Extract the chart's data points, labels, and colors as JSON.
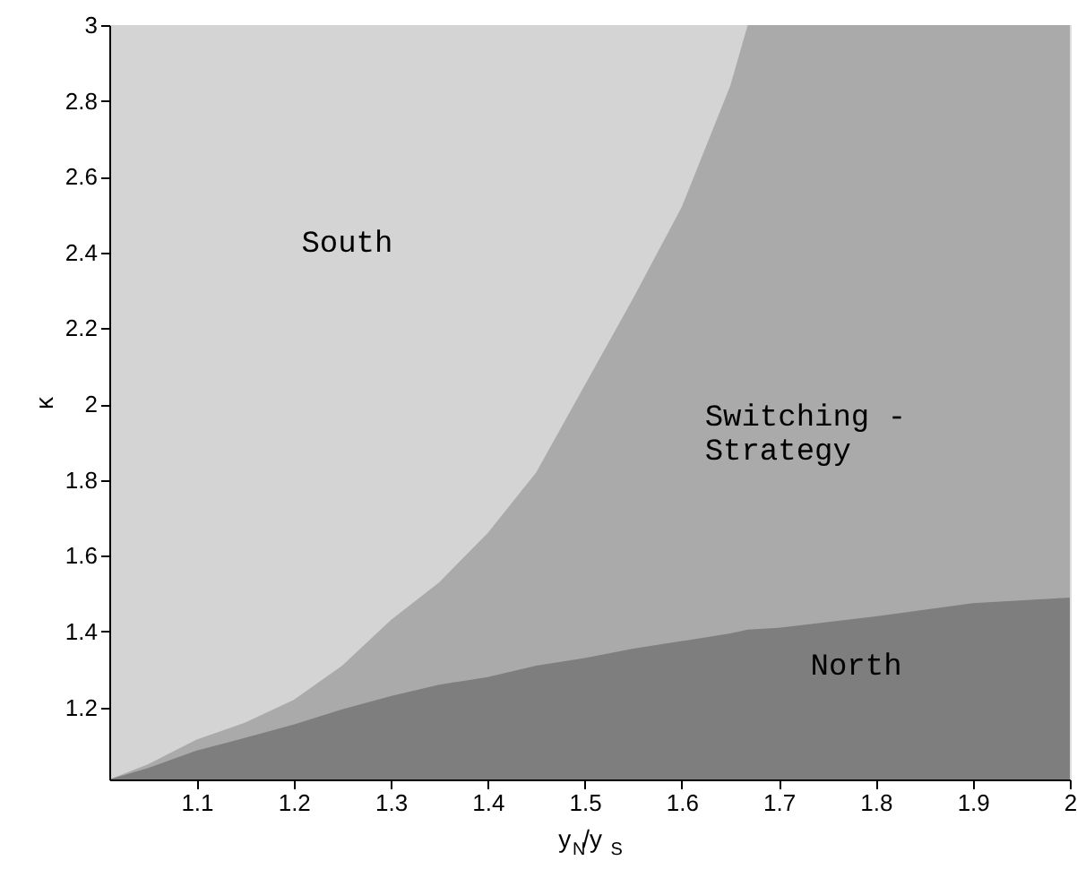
{
  "chart_data": {
    "type": "area",
    "xlabel": "y$_{N}$/y$_{S}$",
    "ylabel": "κ",
    "x": [
      1.01,
      1.05,
      1.1,
      1.15,
      1.2,
      1.25,
      1.3,
      1.35,
      1.4,
      1.45,
      1.5,
      1.55,
      1.6,
      1.65,
      1.668,
      1.7,
      1.8,
      1.9,
      2.0
    ],
    "series": [
      {
        "name": "South",
        "color": "#d4d4d4",
        "values": [
          3,
          3,
          3,
          3,
          3,
          3,
          3,
          3,
          3,
          3,
          3,
          3,
          3,
          3,
          3,
          null,
          null,
          null,
          null
        ]
      },
      {
        "name": "Switching -\nStrategy",
        "color": "#aaaaaa",
        "values": [
          1.01,
          1.05,
          1.115,
          1.16,
          1.22,
          1.31,
          1.43,
          1.53,
          1.66,
          1.82,
          2.05,
          2.28,
          2.52,
          2.84,
          3,
          3,
          3,
          3,
          3
        ]
      },
      {
        "name": "North",
        "color": "#7e7e7e",
        "values": [
          1.01,
          1.04,
          1.086,
          1.12,
          1.155,
          1.195,
          1.23,
          1.26,
          1.28,
          1.31,
          1.33,
          1.355,
          1.375,
          1.395,
          1.405,
          1.41,
          1.44,
          1.475,
          1.49
        ]
      }
    ],
    "xlim": [
      1.01,
      2
    ],
    "ylim": [
      1.01,
      3
    ],
    "xticks": [
      1.1,
      1.2,
      1.3,
      1.4,
      1.5,
      1.6,
      1.7,
      1.8,
      1.9,
      2
    ],
    "yticks": [
      1.2,
      1.4,
      1.6,
      1.8,
      2,
      2.2,
      2.4,
      2.6,
      2.8,
      3
    ],
    "grid": false
  }
}
